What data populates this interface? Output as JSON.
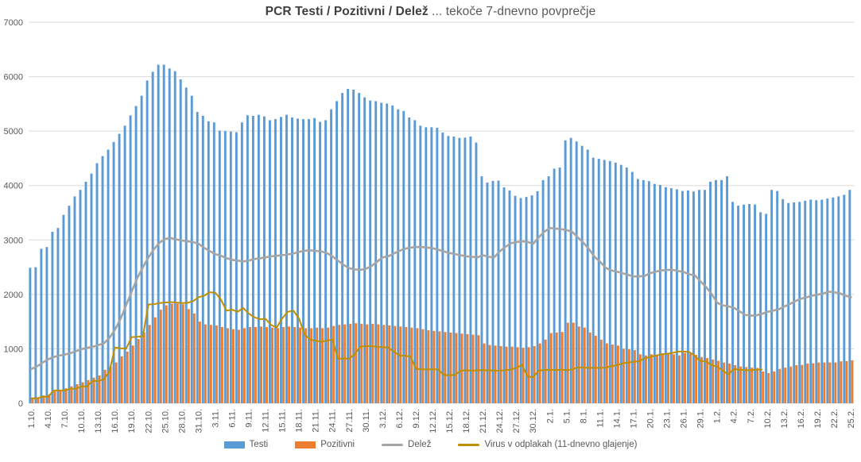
{
  "title": {
    "bold": "PCR Testi / Pozitivni / Delež",
    "suffix": " ... tekoče 7-dnevno povprečje"
  },
  "legend": {
    "items": [
      {
        "label": "Testi",
        "swatch": "bar",
        "color": "#5B9BD5"
      },
      {
        "label": "Pozitivni",
        "swatch": "bar",
        "color": "#ED7D31"
      },
      {
        "label": "Delež",
        "swatch": "line",
        "color": "#A5A5A5"
      },
      {
        "label": "Virus v odplakah (11-dnevno glajenje)",
        "swatch": "line",
        "color": "#BF8F00"
      }
    ]
  },
  "chart_data": {
    "type": "bar",
    "subtype": "clustered bars with overlaid lines, daily data 1.10-25.2",
    "title": "PCR Testi / Pozitivni / Delež ... tekoče 7-dnevno povprečje",
    "xlabel": "",
    "ylabel": "",
    "ylim": [
      0,
      7000
    ],
    "yticks": [
      0,
      1000,
      2000,
      3000,
      4000,
      5000,
      6000,
      7000
    ],
    "grid": true,
    "legend_position": "bottom",
    "n_points": 148,
    "tick_every": 3,
    "tick_labels": [
      "1.10.",
      "4.10.",
      "7.10.",
      "10.10.",
      "13.10.",
      "16.10.",
      "19.10.",
      "22.10.",
      "25.10.",
      "28.10.",
      "31.10.",
      "3.11.",
      "6.11.",
      "9.11.",
      "12.11.",
      "15.11.",
      "18.11.",
      "21.11.",
      "24.11.",
      "27.11.",
      "30.11.",
      "3.12.",
      "6.12.",
      "9.12.",
      "12.12.",
      "15.12.",
      "18.12.",
      "21.12.",
      "24.12.",
      "27.12.",
      "30.12.",
      "2.1.",
      "5.1.",
      "8.1.",
      "11.1.",
      "14.1.",
      "17.1.",
      "20.1.",
      "23.1.",
      "26.1.",
      "29.1.",
      "1.2.",
      "4.2.",
      "7.2.",
      "10.2.",
      "13.2.",
      "16.2.",
      "19.2.",
      "22.2.",
      "25.2."
    ],
    "series": [
      {
        "name": "Testi",
        "type": "bar",
        "color": "#5B9BD5",
        "values": [
          2490,
          2500,
          2840,
          2870,
          3150,
          3220,
          3460,
          3630,
          3800,
          3920,
          4070,
          4220,
          4410,
          4540,
          4660,
          4800,
          4950,
          5100,
          5290,
          5460,
          5650,
          5930,
          6090,
          6220,
          6220,
          6150,
          6100,
          5950,
          5800,
          5650,
          5350,
          5280,
          5180,
          5160,
          5010,
          5000,
          4990,
          4980,
          5160,
          5290,
          5280,
          5300,
          5270,
          5200,
          5220,
          5260,
          5300,
          5250,
          5230,
          5220,
          5220,
          5240,
          5170,
          5200,
          5400,
          5550,
          5700,
          5775,
          5760,
          5700,
          5620,
          5560,
          5550,
          5520,
          5505,
          5470,
          5400,
          5370,
          5250,
          5200,
          5100,
          5070,
          5070,
          5060,
          4975,
          4910,
          4900,
          4875,
          4880,
          4900,
          4790,
          4170,
          4055,
          4085,
          4090,
          3965,
          3910,
          3810,
          3770,
          3790,
          3820,
          3895,
          4100,
          4170,
          4310,
          4330,
          4830,
          4875,
          4810,
          4730,
          4660,
          4510,
          4490,
          4470,
          4450,
          4420,
          4380,
          4330,
          4250,
          4120,
          4100,
          4080,
          4030,
          4010,
          3970,
          3950,
          3930,
          3900,
          3910,
          3890,
          3920,
          3920,
          4070,
          4100,
          4100,
          4170,
          3700,
          3630,
          3650,
          3660,
          3650,
          3510,
          3480,
          3920,
          3900,
          3750,
          3680,
          3690,
          3700,
          3720,
          3740,
          3730,
          3740,
          3760,
          3780,
          3800,
          3830,
          3920
        ]
      },
      {
        "name": "Pozitivni",
        "type": "bar",
        "color": "#ED7D31",
        "values": [
          90,
          95,
          145,
          160,
          220,
          235,
          275,
          310,
          350,
          385,
          425,
          470,
          510,
          615,
          675,
          750,
          860,
          950,
          1060,
          1180,
          1300,
          1440,
          1580,
          1720,
          1800,
          1830,
          1830,
          1820,
          1730,
          1650,
          1500,
          1450,
          1440,
          1430,
          1400,
          1380,
          1360,
          1350,
          1380,
          1400,
          1400,
          1410,
          1400,
          1390,
          1380,
          1400,
          1410,
          1400,
          1390,
          1380,
          1380,
          1390,
          1380,
          1390,
          1420,
          1440,
          1450,
          1460,
          1470,
          1460,
          1450,
          1460,
          1450,
          1440,
          1430,
          1420,
          1410,
          1400,
          1390,
          1380,
          1360,
          1340,
          1330,
          1320,
          1310,
          1300,
          1290,
          1280,
          1270,
          1260,
          1250,
          1100,
          1070,
          1060,
          1050,
          1040,
          1040,
          1030,
          1020,
          1030,
          1050,
          1100,
          1170,
          1290,
          1300,
          1310,
          1480,
          1480,
          1410,
          1390,
          1300,
          1240,
          1170,
          1100,
          1080,
          1060,
          1000,
          990,
          975,
          900,
          880,
          900,
          880,
          900,
          920,
          900,
          880,
          925,
          910,
          890,
          850,
          830,
          805,
          780,
          750,
          730,
          700,
          675,
          665,
          655,
          650,
          585,
          555,
          585,
          630,
          655,
          675,
          700,
          705,
          730,
          735,
          750,
          750,
          750,
          750,
          770,
          775,
          790
        ]
      },
      {
        "name": "Delež",
        "type": "line",
        "color": "#A5A5A5",
        "values": [
          630,
          675,
          745,
          805,
          850,
          875,
          895,
          920,
          955,
          995,
          1020,
          1035,
          1070,
          1100,
          1200,
          1350,
          1550,
          1800,
          2050,
          2300,
          2500,
          2680,
          2830,
          2950,
          3020,
          3035,
          3010,
          2990,
          2975,
          2960,
          2930,
          2855,
          2795,
          2740,
          2710,
          2665,
          2635,
          2620,
          2605,
          2620,
          2650,
          2665,
          2680,
          2700,
          2710,
          2720,
          2735,
          2750,
          2780,
          2800,
          2810,
          2800,
          2790,
          2760,
          2700,
          2620,
          2540,
          2480,
          2460,
          2450,
          2470,
          2520,
          2600,
          2680,
          2700,
          2750,
          2800,
          2840,
          2860,
          2870,
          2870,
          2860,
          2850,
          2820,
          2790,
          2760,
          2740,
          2720,
          2700,
          2690,
          2680,
          2720,
          2690,
          2680,
          2790,
          2870,
          2940,
          2960,
          2975,
          2965,
          2930,
          3050,
          3150,
          3220,
          3210,
          3200,
          3180,
          3150,
          3050,
          2950,
          2830,
          2690,
          2600,
          2490,
          2440,
          2420,
          2390,
          2360,
          2330,
          2330,
          2340,
          2390,
          2420,
          2440,
          2450,
          2450,
          2430,
          2410,
          2370,
          2350,
          2240,
          2140,
          2010,
          1845,
          1800,
          1780,
          1755,
          1690,
          1625,
          1610,
          1615,
          1640,
          1680,
          1700,
          1725,
          1775,
          1820,
          1875,
          1920,
          1945,
          1975,
          1995,
          2015,
          2050,
          2040,
          2020,
          1975,
          1950
        ]
      },
      {
        "name": "Virus v odplakah (11-dnevno glajenje)",
        "type": "line",
        "color": "#BF8F00",
        "values": [
          90,
          90,
          120,
          120,
          235,
          235,
          235,
          265,
          265,
          310,
          310,
          410,
          410,
          440,
          585,
          1025,
          1010,
          1000,
          1215,
          1220,
          1230,
          1815,
          1820,
          1840,
          1850,
          1860,
          1850,
          1840,
          1845,
          1875,
          1950,
          1975,
          2040,
          2030,
          1905,
          1700,
          1720,
          1680,
          1750,
          1650,
          1580,
          1545,
          1550,
          1440,
          1390,
          1560,
          1680,
          1700,
          1560,
          1265,
          1170,
          1150,
          1130,
          1150,
          1170,
          820,
          820,
          820,
          900,
          1040,
          1050,
          1050,
          1040,
          1030,
          1025,
          950,
          880,
          870,
          860,
          630,
          625,
          620,
          625,
          620,
          520,
          515,
          520,
          600,
          605,
          600,
          605,
          610,
          605,
          600,
          600,
          605,
          620,
          650,
          705,
          490,
          480,
          600,
          610,
          615,
          610,
          615,
          610,
          620,
          660,
          655,
          650,
          650,
          650,
          655,
          680,
          700,
          730,
          750,
          760,
          775,
          825,
          850,
          875,
          900,
          910,
          925,
          950,
          950,
          940,
          870,
          775,
          770,
          700,
          675,
          600,
          530,
          630,
          615,
          610,
          605,
          615,
          620,
          null,
          null,
          null,
          null,
          null,
          null,
          null,
          null,
          null,
          null,
          null,
          null,
          null,
          null,
          null,
          null
        ]
      }
    ]
  }
}
